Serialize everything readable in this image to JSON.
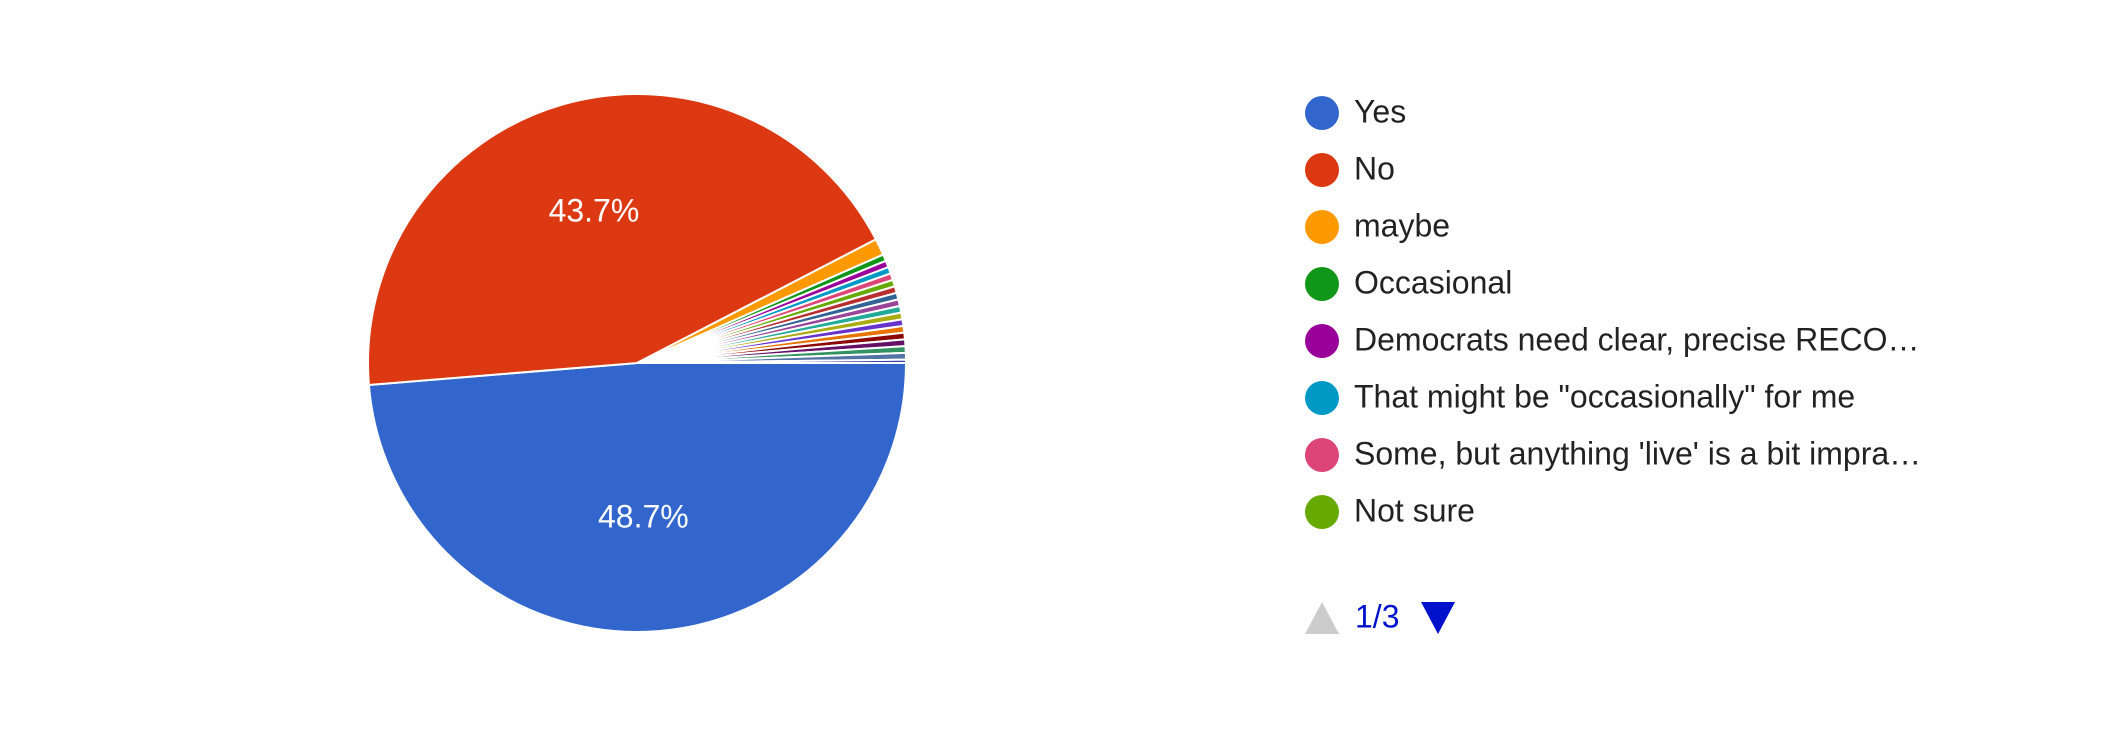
{
  "chart_data": {
    "type": "pie",
    "categories": [
      "Yes",
      "No",
      "maybe",
      "Occasional",
      "Democrats need clear, precise RECO…",
      "That might be \"occasionally\" for me",
      "Some, but anything 'live' is a bit impra…",
      "Not sure",
      null,
      null,
      null,
      null,
      null,
      null,
      null,
      null,
      null,
      null,
      null,
      null
    ],
    "values": [
      48.7,
      43.7,
      1.0,
      0.4,
      0.4,
      0.4,
      0.4,
      0.4,
      0.4,
      0.4,
      0.4,
      0.4,
      0.4,
      0.4,
      0.4,
      0.4,
      0.4,
      0.4,
      0.4,
      0.2
    ],
    "value_labels": [
      "48.7%",
      "43.7%",
      null,
      null,
      null,
      null,
      null,
      null,
      null,
      null,
      null,
      null,
      null,
      null,
      null,
      null,
      null,
      null,
      null,
      null
    ],
    "colors": [
      "#3366cc",
      "#dc3912",
      "#ff9900",
      "#109618",
      "#990099",
      "#0099c6",
      "#dd4477",
      "#66aa00",
      "#b82e2e",
      "#316395",
      "#994499",
      "#22aa99",
      "#aaaa11",
      "#6633cc",
      "#e67300",
      "#8b0707",
      "#651067",
      "#329262",
      "#5574a6",
      "#3b3eac"
    ],
    "legend_page": "1/3"
  }
}
